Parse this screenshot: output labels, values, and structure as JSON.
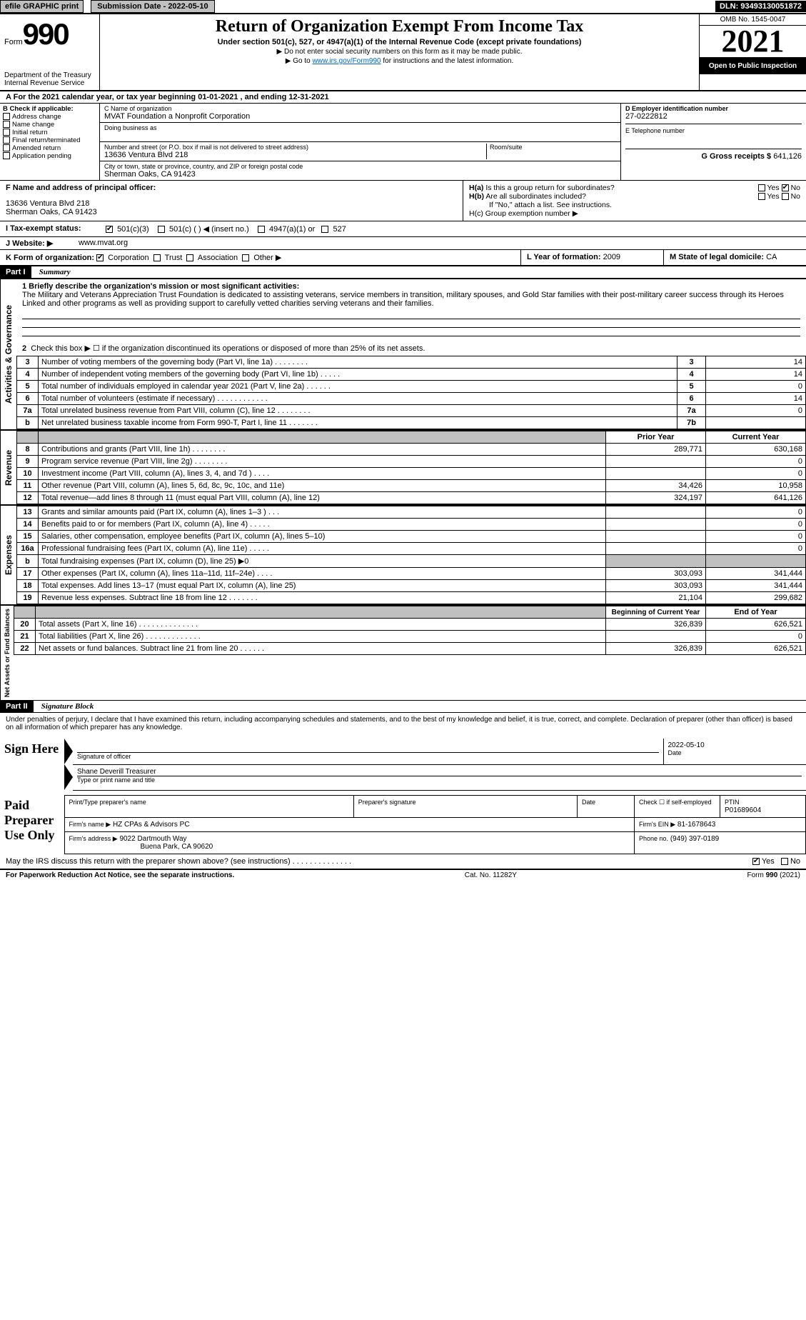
{
  "colors": {
    "bg": "#ffffff",
    "text": "#000000",
    "gray": "#c0c0c0",
    "black_bg": "#000000",
    "link": "#0066cc"
  },
  "topbar": {
    "efile": "efile GRAPHIC print",
    "submission": "Submission Date - 2022-05-10",
    "dln": "DLN: 93493130051872"
  },
  "header": {
    "form_word": "Form",
    "form_number": "990",
    "dept": "Department of the Treasury",
    "irs": "Internal Revenue Service",
    "title": "Return of Organization Exempt From Income Tax",
    "subtitle1": "Under section 501(c), 527, or 4947(a)(1) of the Internal Revenue Code (except private foundations)",
    "subtitle2": "▶ Do not enter social security numbers on this form as it may be made public.",
    "subtitle3_pre": "▶ Go to ",
    "subtitle3_link": "www.irs.gov/Form990",
    "subtitle3_post": " for instructions and the latest information.",
    "omb": "OMB No. 1545-0047",
    "year": "2021",
    "inspection": "Open to Public Inspection"
  },
  "period": "For the 2021 calendar year, or tax year beginning 01-01-2021    , and ending 12-31-2021",
  "b": {
    "header": "B Check if applicable:",
    "items": [
      "Address change",
      "Name change",
      "Initial return",
      "Final return/terminated",
      "Amended return",
      "Application pending"
    ]
  },
  "c": {
    "label_name": "C Name of organization",
    "name": "MVAT Foundation a Nonprofit Corporation",
    "label_dba": "Doing business as",
    "label_addr": "Number and street (or P.O. box if mail is not delivered to street address)",
    "label_room": "Room/suite",
    "addr": "13636 Ventura Blvd 218",
    "label_city": "City or town, state or province, country, and ZIP or foreign postal code",
    "city": "Sherman Oaks, CA  91423"
  },
  "d": {
    "label": "D Employer identification number",
    "value": "27-0222812"
  },
  "e": {
    "label": "E Telephone number",
    "value": ""
  },
  "g": {
    "label": "G Gross receipts $",
    "value": "641,126"
  },
  "f": {
    "label": "F  Name and address of principal officer:",
    "addr1": "13636 Ventura Blvd 218",
    "addr2": "Sherman Oaks, CA  91423"
  },
  "h": {
    "a_label": "H(a)  Is this a group return for subordinates?",
    "a_yes": "Yes",
    "a_no": "No",
    "b_label": "H(b)  Are all subordinates included?",
    "b_note": "If \"No,\" attach a list. See instructions.",
    "c_label": "H(c)  Group exemption number ▶"
  },
  "i": {
    "label": "I  Tax-exempt status:",
    "opt_501c3": "501(c)(3)",
    "opt_501c": "501(c) (   ) ◀ (insert no.)",
    "opt_4947": "4947(a)(1) or",
    "opt_527": "527"
  },
  "j": {
    "label": "J  Website: ▶",
    "value": "www.mvat.org"
  },
  "k": {
    "label": "K Form of organization:",
    "opts": [
      "Corporation",
      "Trust",
      "Association",
      "Other ▶"
    ],
    "l_label": "L Year of formation:",
    "l_val": "2009",
    "m_label": "M State of legal domicile:",
    "m_val": "CA"
  },
  "part1": {
    "header": "Part I",
    "title": "Summary",
    "vert1": "Activities & Governance",
    "line1_label": "1 Briefly describe the organization's mission or most significant activities:",
    "mission": "The Military and Veterans Appreciation Trust Foundation is dedicated to assisting veterans, service members in transition, military spouses, and Gold Star families with their post-military career success through its Heroes Linked and other programs as well as providing support to carefully vetted charities serving veterans and their families.",
    "line2": "Check this box ▶ ☐  if the organization discontinued its operations or disposed of more than 25% of its net assets.",
    "rows_ag": [
      {
        "n": "3",
        "d": "Number of voting members of the governing body (Part VI, line 1a)   .    .    .    .    .    .    .    .",
        "b": "3",
        "v": "14"
      },
      {
        "n": "4",
        "d": "Number of independent voting members of the governing body (Part VI, line 1b)   .    .    .    .    .",
        "b": "4",
        "v": "14"
      },
      {
        "n": "5",
        "d": "Total number of individuals employed in calendar year 2021 (Part V, line 2a)   .    .    .    .    .    .",
        "b": "5",
        "v": "0"
      },
      {
        "n": "6",
        "d": "Total number of volunteers (estimate if necessary)   .    .    .    .    .    .    .    .    .    .    .    .",
        "b": "6",
        "v": "14"
      },
      {
        "n": "7a",
        "d": "Total unrelated business revenue from Part VIII, column (C), line 12   .    .    .    .    .    .    .    .",
        "b": "7a",
        "v": "0"
      },
      {
        "n": "b",
        "d": "Net unrelated business taxable income from Form 990-T, Part I, line 11   .    .    .    .    .    .    .",
        "b": "7b",
        "v": ""
      }
    ],
    "vert2": "Revenue",
    "col_prior": "Prior Year",
    "col_current": "Current Year",
    "rows_rev": [
      {
        "n": "8",
        "d": "Contributions and grants (Part VIII, line 1h)   .    .    .    .    .    .    .    .",
        "p": "289,771",
        "c": "630,168"
      },
      {
        "n": "9",
        "d": "Program service revenue (Part VIII, line 2g)   .    .    .    .    .    .    .    .",
        "p": "",
        "c": "0"
      },
      {
        "n": "10",
        "d": "Investment income (Part VIII, column (A), lines 3, 4, and 7d )   .    .    .    .",
        "p": "",
        "c": "0"
      },
      {
        "n": "11",
        "d": "Other revenue (Part VIII, column (A), lines 5, 6d, 8c, 9c, 10c, and 11e)",
        "p": "34,426",
        "c": "10,958"
      },
      {
        "n": "12",
        "d": "Total revenue—add lines 8 through 11 (must equal Part VIII, column (A), line 12)",
        "p": "324,197",
        "c": "641,126"
      }
    ],
    "vert3": "Expenses",
    "rows_exp": [
      {
        "n": "13",
        "d": "Grants and similar amounts paid (Part IX, column (A), lines 1–3 )   .    .    .",
        "p": "",
        "c": "0"
      },
      {
        "n": "14",
        "d": "Benefits paid to or for members (Part IX, column (A), line 4)   .    .    .    .    .",
        "p": "",
        "c": "0"
      },
      {
        "n": "15",
        "d": "Salaries, other compensation, employee benefits (Part IX, column (A), lines 5–10)",
        "p": "",
        "c": "0"
      },
      {
        "n": "16a",
        "d": "Professional fundraising fees (Part IX, column (A), line 11e)   .    .    .    .    .",
        "p": "",
        "c": "0"
      },
      {
        "n": "b",
        "d": "Total fundraising expenses (Part IX, column (D), line 25) ▶0",
        "p": "shade",
        "c": "shade"
      },
      {
        "n": "17",
        "d": "Other expenses (Part IX, column (A), lines 11a–11d, 11f–24e)   .    .    .    .",
        "p": "303,093",
        "c": "341,444"
      },
      {
        "n": "18",
        "d": "Total expenses. Add lines 13–17 (must equal Part IX, column (A), line 25)",
        "p": "303,093",
        "c": "341,444"
      },
      {
        "n": "19",
        "d": "Revenue less expenses. Subtract line 18 from line 12   .    .    .    .    .    .    .",
        "p": "21,104",
        "c": "299,682"
      }
    ],
    "vert4": "Net Assets or Fund Balances",
    "col_begin": "Beginning of Current Year",
    "col_end": "End of Year",
    "rows_net": [
      {
        "n": "20",
        "d": "Total assets (Part X, line 16)   .    .    .    .    .    .    .    .    .    .    .    .    .    .",
        "p": "326,839",
        "c": "626,521"
      },
      {
        "n": "21",
        "d": "Total liabilities (Part X, line 26)   .    .    .    .    .    .    .    .    .    .    .    .    .",
        "p": "",
        "c": "0"
      },
      {
        "n": "22",
        "d": "Net assets or fund balances. Subtract line 21 from line 20   .    .    .    .    .    .",
        "p": "326,839",
        "c": "626,521"
      }
    ]
  },
  "part2": {
    "header": "Part II",
    "title": "Signature Block",
    "declaration": "Under penalties of perjury, I declare that I have examined this return, including accompanying schedules and statements, and to the best of my knowledge and belief, it is true, correct, and complete. Declaration of preparer (other than officer) is based on all information of which preparer has any knowledge.",
    "sign_here": "Sign Here",
    "sig_officer": "Signature of officer",
    "sig_date": "Date",
    "sig_date_val": "2022-05-10",
    "officer_name": "Shane Deverill Treasurer",
    "type_name": "Type or print name and title",
    "paid": "Paid Preparer Use Only",
    "pt_name_label": "Print/Type preparer's name",
    "pt_sig_label": "Preparer's signature",
    "pt_date_label": "Date",
    "pt_check_label": "Check ☐ if self-employed",
    "ptin_label": "PTIN",
    "ptin_val": "P01689604",
    "firm_name_label": "Firm's name    ▶",
    "firm_name": "HZ CPAs & Advisors PC",
    "firm_ein_label": "Firm's EIN ▶",
    "firm_ein": "81-1678643",
    "firm_addr_label": "Firm's address ▶",
    "firm_addr1": "9022 Dartmouth Way",
    "firm_addr2": "Buena Park, CA  90620",
    "firm_phone_label": "Phone no.",
    "firm_phone": "(949) 397-0189",
    "discuss": "May the IRS discuss this return with the preparer shown above? (see instructions)   .    .    .    .    .    .    .    .    .    .    .    .    .    .",
    "discuss_yes": "Yes",
    "discuss_no": "No"
  },
  "footer": {
    "paperwork": "For Paperwork Reduction Act Notice, see the separate instructions.",
    "cat": "Cat. No. 11282Y",
    "form": "Form 990 (2021)"
  }
}
